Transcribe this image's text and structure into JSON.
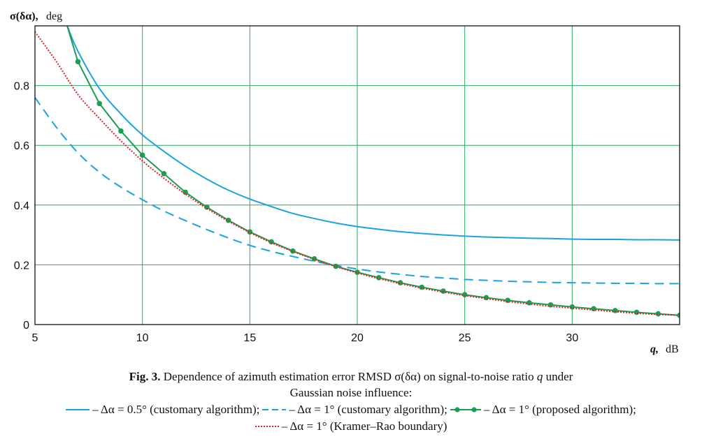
{
  "chart_data": {
    "type": "line",
    "ylabel_sym": "σ(δα),",
    "ylabel_unit": "deg",
    "xlabel_sym": "q,",
    "xlabel_unit": "dB",
    "xlim": [
      5,
      35
    ],
    "ylim": [
      0,
      1.0
    ],
    "x_ticks": [
      5,
      10,
      15,
      20,
      25,
      30
    ],
    "y_ticks": [
      0,
      0.2,
      0.4,
      0.6,
      0.8
    ],
    "y_tick_labels": [
      "0",
      "0.2",
      "0.4",
      "0.6",
      "0.8"
    ],
    "grid": true,
    "series": [
      {
        "key": "s05_customary",
        "color": "#1aa3e0",
        "style": "solid",
        "x": [
          6.5,
          7,
          8,
          9,
          10,
          11,
          12,
          13,
          14,
          15,
          16,
          17,
          18,
          19,
          20,
          21,
          22,
          23,
          24,
          25,
          26,
          27,
          28,
          29,
          30,
          31,
          32,
          33,
          34,
          35
        ],
        "values": [
          1.0,
          0.915,
          0.79,
          0.705,
          0.635,
          0.58,
          0.53,
          0.487,
          0.45,
          0.42,
          0.395,
          0.372,
          0.355,
          0.34,
          0.328,
          0.319,
          0.311,
          0.305,
          0.3,
          0.296,
          0.293,
          0.291,
          0.289,
          0.288,
          0.286,
          0.285,
          0.285,
          0.284,
          0.284,
          0.283
        ]
      },
      {
        "key": "s1_customary",
        "color": "#1aa3e0",
        "style": "dashed",
        "x": [
          5,
          6,
          7,
          8,
          9,
          10,
          11,
          12,
          13,
          14,
          15,
          16,
          17,
          18,
          19,
          20,
          21,
          22,
          23,
          24,
          25,
          26,
          27,
          28,
          29,
          30,
          31,
          32,
          33,
          34,
          35
        ],
        "values": [
          0.76,
          0.66,
          0.575,
          0.51,
          0.46,
          0.418,
          0.38,
          0.348,
          0.318,
          0.29,
          0.265,
          0.245,
          0.228,
          0.212,
          0.198,
          0.186,
          0.176,
          0.168,
          0.161,
          0.156,
          0.151,
          0.148,
          0.145,
          0.143,
          0.141,
          0.14,
          0.139,
          0.138,
          0.138,
          0.137,
          0.137
        ]
      },
      {
        "key": "s1_proposed",
        "color": "#1a9e52",
        "style": "markers",
        "x": [
          6.5,
          7,
          8,
          9,
          10,
          11,
          12,
          13,
          14,
          15,
          16,
          17,
          18,
          19,
          20,
          21,
          22,
          23,
          24,
          25,
          26,
          27,
          28,
          29,
          30,
          31,
          32,
          33,
          34,
          35
        ],
        "marker_from": 7,
        "values": [
          1.0,
          0.88,
          0.74,
          0.648,
          0.567,
          0.505,
          0.443,
          0.393,
          0.349,
          0.31,
          0.277,
          0.246,
          0.22,
          0.195,
          0.175,
          0.157,
          0.14,
          0.125,
          0.112,
          0.1,
          0.09,
          0.081,
          0.073,
          0.066,
          0.059,
          0.053,
          0.047,
          0.041,
          0.036,
          0.031
        ]
      },
      {
        "key": "s1_kramer_rao",
        "color": "#e0202a",
        "style": "dotted",
        "x": [
          5,
          6,
          7,
          8,
          9,
          10,
          11,
          12,
          13,
          14,
          15,
          16,
          17,
          18,
          19,
          20,
          21,
          22,
          23,
          24,
          25,
          26,
          27,
          28,
          29,
          30,
          31,
          32,
          33,
          34,
          35
        ],
        "values": [
          0.98,
          0.88,
          0.77,
          0.69,
          0.615,
          0.548,
          0.49,
          0.437,
          0.389,
          0.346,
          0.308,
          0.274,
          0.245,
          0.218,
          0.194,
          0.173,
          0.154,
          0.137,
          0.122,
          0.109,
          0.097,
          0.087,
          0.077,
          0.069,
          0.061,
          0.055,
          0.049,
          0.043,
          0.038,
          0.034,
          0.031
        ]
      }
    ]
  },
  "caption": {
    "fig_label": "Fig. 3.",
    "line1_rest": " Dependence of azimuth estimation error RMSD σ(δα) on signal-to-noise ratio ",
    "line1_q": "q",
    "line1_end": " under",
    "line2": "Gaussian noise influence:"
  },
  "legend": {
    "item1": "– Δα = 0.5° (customary algorithm);",
    "item2": "– Δα = 1° (customary algorithm);",
    "item3": "– Δα = 1° (proposed algorithm);",
    "item4": "– Δα = 1° (Kramer–Rao boundary)"
  }
}
